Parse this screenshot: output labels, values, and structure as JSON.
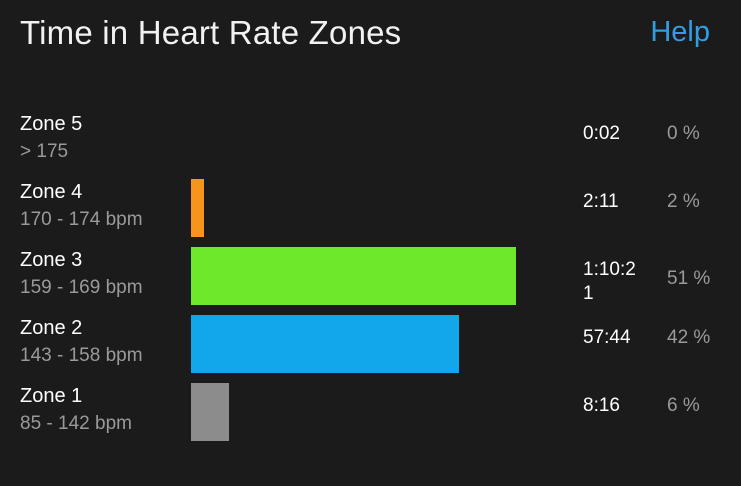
{
  "header": {
    "title": "Time in Heart Rate Zones",
    "help_label": "Help"
  },
  "chart_data": {
    "type": "bar",
    "orientation": "horizontal",
    "categories": [
      "Zone 5",
      "Zone 4",
      "Zone 3",
      "Zone 2",
      "Zone 1"
    ],
    "ranges": [
      "> 175",
      "170 - 174 bpm",
      "159 - 169 bpm",
      "143 - 158 bpm",
      "85 - 142 bpm"
    ],
    "times": [
      "0:02",
      "2:11",
      "1:10:21",
      "57:44",
      "8:16"
    ],
    "percent_labels": [
      "0 %",
      "2 %",
      "51 %",
      "42 %",
      "6 %"
    ],
    "values": [
      0,
      2,
      51,
      42,
      6
    ],
    "colors": [
      "#e8392b",
      "#f7941d",
      "#6ee82a",
      "#12a6ea",
      "#8c8c8c"
    ]
  }
}
